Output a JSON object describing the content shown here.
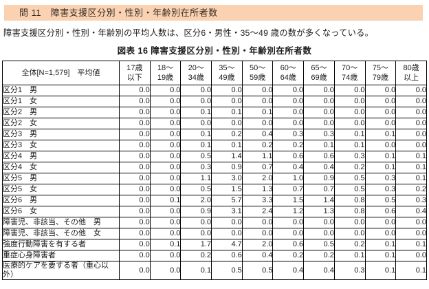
{
  "banner": {
    "title": "問 11　障害支援区分別・性別・年齢別在所者数",
    "bg_color": "#FAD2B2"
  },
  "summary": "障害支援区分別・性別・年齢別の平均人数は、区分6・男性・35～49 歳の数が多くなっている。",
  "table": {
    "caption": "図表 16 障害支援区分別・性別・年齢別在所者数",
    "corner_header": "全体[N=1,579]　平均値",
    "col_headers": [
      [
        "17歳",
        "以下"
      ],
      [
        "18～",
        "19歳"
      ],
      [
        "20～",
        "34歳"
      ],
      [
        "35～",
        "49歳"
      ],
      [
        "50～",
        "59歳"
      ],
      [
        "60～",
        "64歳"
      ],
      [
        "65～",
        "69歳"
      ],
      [
        "70～",
        "74歳"
      ],
      [
        "75～",
        "79歳"
      ],
      [
        "80歳",
        "以上"
      ]
    ],
    "rows": [
      {
        "label": "区分1　男",
        "values": [
          "0.0",
          "0.0",
          "0.0",
          "0.0",
          "0.0",
          "0.0",
          "0.0",
          "0.0",
          "0.0",
          "0.0"
        ]
      },
      {
        "label": "区分1　女",
        "values": [
          "0.0",
          "0.0",
          "0.0",
          "0.0",
          "0.0",
          "0.0",
          "0.0",
          "0.0",
          "0.0",
          "0.0"
        ]
      },
      {
        "label": "区分2　男",
        "values": [
          "0.0",
          "0.0",
          "0.1",
          "0.1",
          "0.1",
          "0.0",
          "0.0",
          "0.0",
          "0.0",
          "0.0"
        ]
      },
      {
        "label": "区分2　女",
        "values": [
          "0.0",
          "0.0",
          "0.0",
          "0.0",
          "0.0",
          "0.0",
          "0.0",
          "0.0",
          "0.0",
          "0.0"
        ]
      },
      {
        "label": "区分3　男",
        "values": [
          "0.0",
          "0.0",
          "0.1",
          "0.2",
          "0.4",
          "0.3",
          "0.3",
          "0.1",
          "0.1",
          "0.0"
        ]
      },
      {
        "label": "区分3　女",
        "values": [
          "0.0",
          "0.0",
          "0.1",
          "0.1",
          "0.2",
          "0.2",
          "0.1",
          "0.1",
          "0.0",
          "0.0"
        ]
      },
      {
        "label": "区分4　男",
        "values": [
          "0.0",
          "0.0",
          "0.5",
          "1.4",
          "1.1",
          "0.6",
          "0.6",
          "0.3",
          "0.1",
          "0.1"
        ]
      },
      {
        "label": "区分4　女",
        "values": [
          "0.0",
          "0.0",
          "0.3",
          "0.9",
          "0.7",
          "0.4",
          "0.4",
          "0.2",
          "0.1",
          "0.1"
        ]
      },
      {
        "label": "区分5　男",
        "values": [
          "0.0",
          "0.0",
          "1.1",
          "3.0",
          "2.0",
          "1.0",
          "0.9",
          "0.5",
          "0.3",
          "0.1"
        ]
      },
      {
        "label": "区分5　女",
        "values": [
          "0.0",
          "0.0",
          "0.5",
          "1.5",
          "1.3",
          "0.7",
          "0.7",
          "0.5",
          "0.3",
          "0.2"
        ]
      },
      {
        "label": "区分6　男",
        "values": [
          "0.0",
          "0.1",
          "2.0",
          "5.7",
          "3.3",
          "1.5",
          "1.4",
          "0.8",
          "0.5",
          "0.3"
        ]
      },
      {
        "label": "区分6　女",
        "values": [
          "0.0",
          "0.0",
          "0.9",
          "3.1",
          "2.4",
          "1.2",
          "1.3",
          "0.8",
          "0.6",
          "0.4"
        ]
      },
      {
        "label": "障害児、非該当、その他　男",
        "values": [
          "0.0",
          "0.0",
          "0.0",
          "0.0",
          "0.0",
          "0.0",
          "0.0",
          "0.0",
          "0.0",
          "0.0"
        ]
      },
      {
        "label": "障害児、非該当、その他　女",
        "values": [
          "0.0",
          "0.0",
          "0.0",
          "0.0",
          "0.0",
          "0.0",
          "0.0",
          "0.0",
          "0.0",
          "0.0"
        ]
      },
      {
        "label": "強度行動障害を有する者",
        "values": [
          "0.0",
          "0.1",
          "1.7",
          "4.7",
          "2.0",
          "0.6",
          "0.5",
          "0.2",
          "0.1",
          "0.1"
        ]
      },
      {
        "label": "重症心身障害者",
        "values": [
          "0.0",
          "0.0",
          "0.2",
          "0.6",
          "0.4",
          "0.2",
          "0.2",
          "0.1",
          "0.1",
          "0.0"
        ]
      },
      {
        "label": "医療的ケアを要する者（重心以外）",
        "values": [
          "0.0",
          "0.0",
          "0.1",
          "0.5",
          "0.5",
          "0.4",
          "0.4",
          "0.3",
          "0.1",
          "0.1"
        ]
      }
    ]
  }
}
